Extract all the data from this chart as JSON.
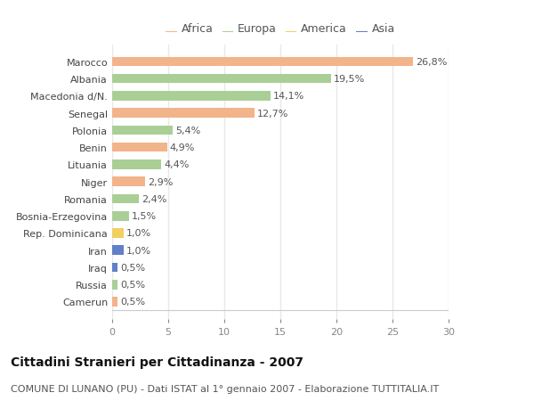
{
  "countries": [
    "Marocco",
    "Albania",
    "Macedonia d/N.",
    "Senegal",
    "Polonia",
    "Benin",
    "Lituania",
    "Niger",
    "Romania",
    "Bosnia-Erzegovina",
    "Rep. Dominicana",
    "Iran",
    "Iraq",
    "Russia",
    "Camerun"
  ],
  "values": [
    26.8,
    19.5,
    14.1,
    12.7,
    5.4,
    4.9,
    4.4,
    2.9,
    2.4,
    1.5,
    1.0,
    1.0,
    0.5,
    0.5,
    0.5
  ],
  "labels": [
    "26,8%",
    "19,5%",
    "14,1%",
    "12,7%",
    "5,4%",
    "4,9%",
    "4,4%",
    "2,9%",
    "2,4%",
    "1,5%",
    "1,0%",
    "1,0%",
    "0,5%",
    "0,5%",
    "0,5%"
  ],
  "continents": [
    "Africa",
    "Europa",
    "Europa",
    "Africa",
    "Europa",
    "Africa",
    "Europa",
    "Africa",
    "Europa",
    "Europa",
    "America",
    "Asia",
    "Asia",
    "Europa",
    "Africa"
  ],
  "continent_colors": {
    "Africa": "#F2B48A",
    "Europa": "#AACF96",
    "America": "#F0D060",
    "Asia": "#6080C8"
  },
  "legend_order": [
    "Africa",
    "Europa",
    "America",
    "Asia"
  ],
  "xlim": [
    0,
    30
  ],
  "xticks": [
    0,
    5,
    10,
    15,
    20,
    25,
    30
  ],
  "title": "Cittadini Stranieri per Cittadinanza - 2007",
  "subtitle": "COMUNE DI LUNANO (PU) - Dati ISTAT al 1° gennaio 2007 - Elaborazione TUTTITALIA.IT",
  "background_color": "#ffffff",
  "grid_color": "#e8e8e8",
  "bar_height": 0.55,
  "title_fontsize": 10,
  "subtitle_fontsize": 8,
  "label_fontsize": 8,
  "tick_fontsize": 8,
  "legend_fontsize": 9
}
